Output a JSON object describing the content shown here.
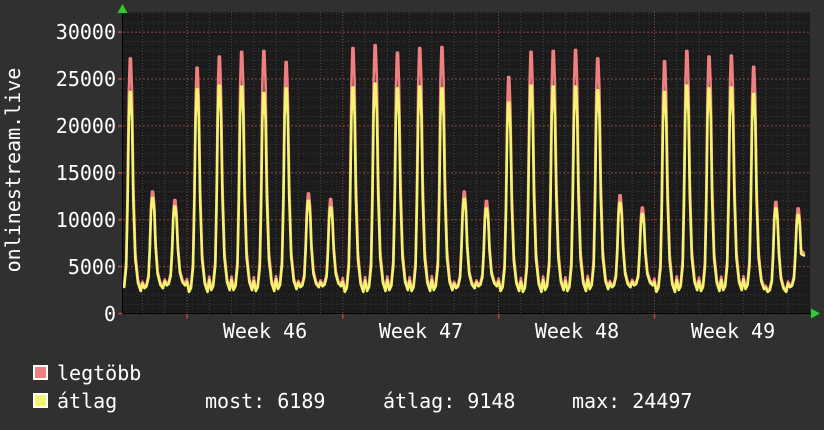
{
  "title": "onlinestream.live",
  "colors": {
    "outer_bg": "#303030",
    "plot_bg": "#1b1b1b",
    "legtobb": "#f08080",
    "atlag": "#f4f470",
    "grid_minor_h": "#3b3b3b",
    "grid_quarter_v": "#2d2d2d",
    "grid_day_v": "#4a4a4a",
    "grid_major_red": "#a04b4b",
    "axis": "#000000",
    "arrow_green": "#2fcc2f",
    "text": "#ffffff"
  },
  "legend": [
    {
      "label": "legtöbb",
      "color": "#f08080"
    },
    {
      "label": "átlag",
      "color": "#f4f470"
    }
  ],
  "stats": [
    {
      "text": "most: 6189"
    },
    {
      "text": "átlag: 9148"
    },
    {
      "text": "max: 24497"
    }
  ],
  "chart_data": {
    "type": "line",
    "title": "onlinestream.live",
    "ylim": [
      0,
      32000
    ],
    "y_major_step": 5000,
    "y_minor_step": 1000,
    "y_ticks": [
      "0",
      "5000",
      "10000",
      "15000",
      "20000",
      "25000",
      "30000"
    ],
    "x_week_labels": [
      "Week 46",
      "Week 47",
      "Week 48",
      "Week 49"
    ],
    "days_total": 31,
    "week_boundary_days": [
      3,
      10,
      17,
      24
    ],
    "intraday_profile": [
      [
        0.0,
        0.05
      ],
      [
        0.09,
        0.0
      ],
      [
        0.18,
        0.02
      ],
      [
        0.27,
        0.12
      ],
      [
        0.33,
        0.42
      ],
      [
        0.385,
        0.85
      ],
      [
        0.43,
        1.0
      ],
      [
        0.48,
        1.0
      ],
      [
        0.53,
        0.86
      ],
      [
        0.59,
        0.46
      ],
      [
        0.68,
        0.16
      ],
      [
        0.8,
        0.04
      ],
      [
        0.92,
        0.0
      ]
    ],
    "day1_start_fraction": 0.18,
    "end": {
      "cut_after": 0.6,
      "fraction": 0.72
    },
    "series": [
      {
        "name": "legtöbb",
        "color": "#f08080",
        "end_value": 6450,
        "peaks": [
          27200,
          13000,
          12100,
          26200,
          27400,
          27900,
          28000,
          26800,
          12800,
          12200,
          28300,
          28600,
          27800,
          28300,
          28400,
          13000,
          12000,
          25200,
          27900,
          28000,
          28100,
          27200,
          12600,
          11300,
          26900,
          28000,
          27400,
          27500,
          26300,
          11900,
          11200
        ],
        "troughs": [
          2600,
          2900,
          3200,
          2500,
          2700,
          2700,
          2600,
          2800,
          3000,
          3100,
          2500,
          2600,
          2700,
          2600,
          2700,
          2900,
          3100,
          2600,
          2500,
          2700,
          2600,
          2800,
          3000,
          3200,
          2500,
          2700,
          2600,
          2700,
          2800,
          2500,
          3000
        ]
      },
      {
        "name": "átlag",
        "color": "#f4f470",
        "end_value": 6189,
        "peaks": [
          23600,
          12300,
          11400,
          23900,
          24300,
          24200,
          23500,
          24000,
          12000,
          11300,
          24100,
          24497,
          24000,
          24200,
          24000,
          12200,
          11200,
          22500,
          24300,
          24200,
          24200,
          23800,
          11800,
          10600,
          23600,
          24300,
          24000,
          24100,
          23400,
          11200,
          10500
        ],
        "troughs": [
          2400,
          2700,
          3000,
          2300,
          2500,
          2500,
          2400,
          2600,
          2800,
          2900,
          2300,
          2400,
          2500,
          2400,
          2500,
          2700,
          2900,
          2400,
          2300,
          2500,
          2400,
          2600,
          2800,
          3000,
          2300,
          2500,
          2400,
          2500,
          2600,
          2300,
          2800
        ]
      }
    ]
  }
}
